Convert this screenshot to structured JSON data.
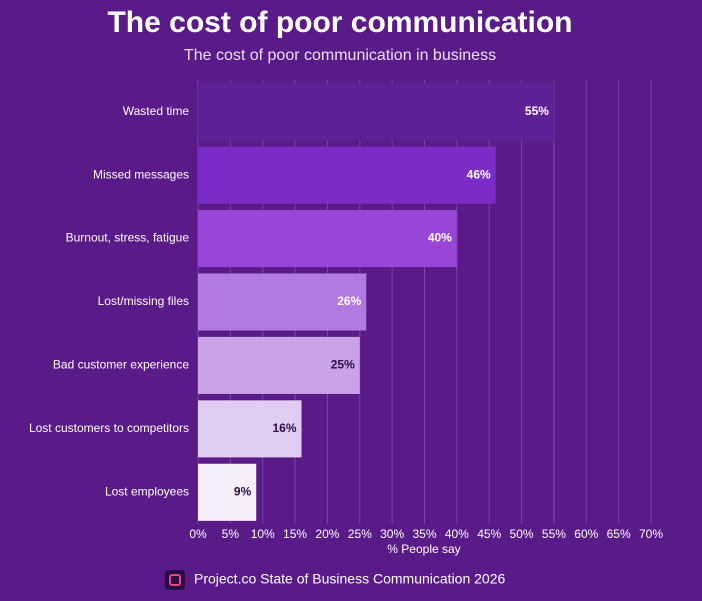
{
  "chart_data": {
    "type": "barh",
    "title": "The cost of poor communication",
    "subtitle": "The cost of poor communication in business",
    "categories": [
      "Wasted time",
      "Missed messages",
      "Burnout, stress, fatigue",
      "Lost/missing files",
      "Bad customer experience",
      "Lost customers to competitors",
      "Lost employees"
    ],
    "values": [
      55,
      46,
      40,
      26,
      25,
      16,
      9
    ],
    "value_labels": [
      "55%",
      "46%",
      "40%",
      "26%",
      "25%",
      "16%",
      "9%"
    ],
    "colors": [
      "#5e2094",
      "#7b2cc6",
      "#9746d8",
      "#b27ae0",
      "#c9a2e8",
      "#e0cdf1",
      "#f6effb"
    ],
    "xlabel": "% People say",
    "xlim": [
      0,
      70
    ],
    "xticks": [
      {
        "value": 0,
        "label": "0%"
      },
      {
        "value": 5,
        "label": "5%"
      },
      {
        "value": 10,
        "label": "10%"
      },
      {
        "value": 15,
        "label": "15%"
      },
      {
        "value": 20,
        "label": "20%"
      },
      {
        "value": 25,
        "label": "25%"
      },
      {
        "value": 30,
        "label": "30%"
      },
      {
        "value": 35,
        "label": "35%"
      },
      {
        "value": 40,
        "label": "40%"
      },
      {
        "value": 45,
        "label": "45%"
      },
      {
        "value": 50,
        "label": "50%"
      },
      {
        "value": 55,
        "label": "55%"
      },
      {
        "value": 60,
        "label": "60%"
      },
      {
        "value": 65,
        "label": "65%"
      },
      {
        "value": 70,
        "label": "70%"
      }
    ],
    "grid": true,
    "source": "Project.co State of Business Communication 2026"
  }
}
